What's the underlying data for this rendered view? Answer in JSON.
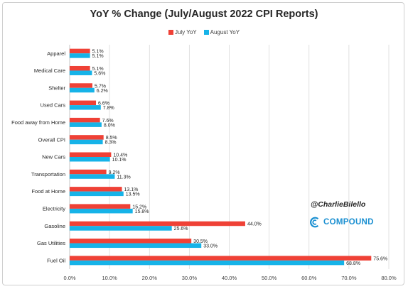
{
  "chart_data": {
    "type": "bar",
    "orientation": "horizontal",
    "title": "YoY % Change (July/August 2022 CPI Reports)",
    "categories": [
      "Apparel",
      "Medical Care",
      "Shelter",
      "Used Cars",
      "Food away from Home",
      "Overall CPI",
      "New Cars",
      "Transportation",
      "Food at Home",
      "Electricity",
      "Gasoline",
      "Gas Utilities",
      "Fuel Oil"
    ],
    "series": [
      {
        "name": "July YoY",
        "color": "#ef4136",
        "values": [
          5.1,
          5.1,
          5.7,
          6.6,
          7.6,
          8.5,
          10.4,
          9.2,
          13.1,
          15.2,
          44.0,
          30.5,
          75.6
        ],
        "labels": [
          "5.1%",
          "5.1%",
          "5.7%",
          "6.6%",
          "7.6%",
          "8.5%",
          "10.4%",
          "9.2%",
          "13.1%",
          "15.2%",
          "44.0%",
          "30.5%",
          "75.6%"
        ]
      },
      {
        "name": "August YoY",
        "color": "#16b3e8",
        "values": [
          5.1,
          5.6,
          6.2,
          7.8,
          8.0,
          8.3,
          10.1,
          11.3,
          13.5,
          15.8,
          25.6,
          33.0,
          68.8
        ],
        "labels": [
          "5.1%",
          "5.6%",
          "6.2%",
          "7.8%",
          "8.0%",
          "8.3%",
          "10.1%",
          "11.3%",
          "13.5%",
          "15.8%",
          "25.6%",
          "33.0%",
          "68.8%"
        ]
      }
    ],
    "xlim": [
      0,
      80
    ],
    "xticks": [
      0,
      10,
      20,
      30,
      40,
      50,
      60,
      70,
      80
    ],
    "xtick_labels": [
      "0.0%",
      "10.0%",
      "20.0%",
      "30.0%",
      "40.0%",
      "50.0%",
      "60.0%",
      "70.0%",
      "80.0%"
    ],
    "grid": "vertical",
    "legend_position": "top-center"
  },
  "watermark": {
    "handle": "@CharlieBilello",
    "brand": "COMPOUND",
    "brand_color": "#1a8fd1",
    "logo_icon": "compound-logo-icon"
  }
}
